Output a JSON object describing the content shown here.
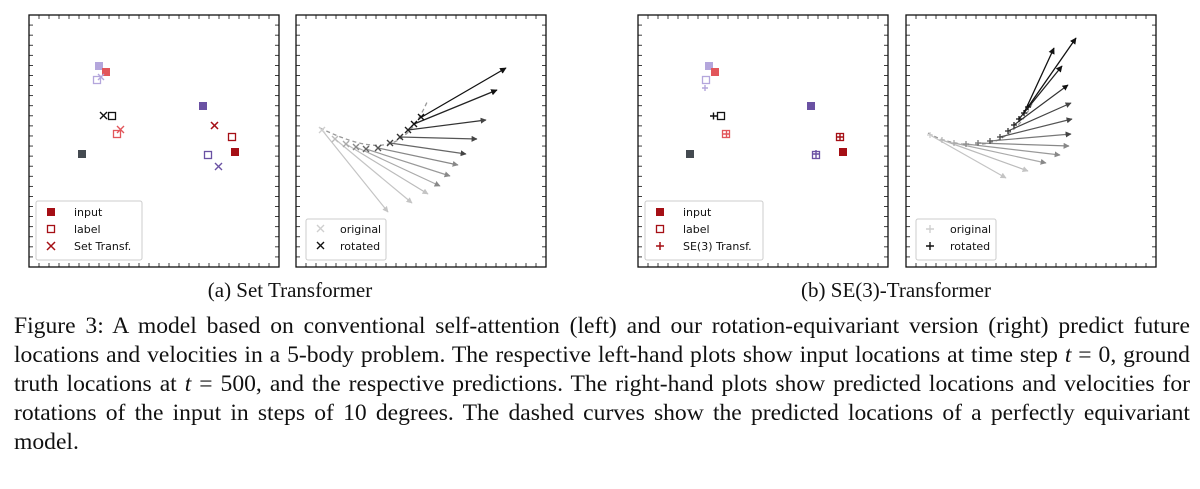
{
  "figure": {
    "panels": [
      {
        "subcaption": "(a) Set Transformer",
        "left_legend": [
          "input",
          "label",
          "Set Transf."
        ],
        "right_legend": [
          "original",
          "rotated"
        ]
      },
      {
        "subcaption": "(b) SE(3)-Transformer",
        "left_legend": [
          "input",
          "label",
          "SE(3) Transf."
        ],
        "right_legend": [
          "original",
          "rotated"
        ]
      }
    ],
    "colors": {
      "dark_red": "#a50f15",
      "red": "#e2565b",
      "light_purple": "#b4a6dc",
      "purple": "#6a51a3",
      "dark_gray": "#444a50",
      "light_gray": "#d0d0d0",
      "black": "#111111"
    }
  },
  "caption": {
    "label": "Figure 3:",
    "part1": " A model based on conventional self-attention (left) and our rotation-equivariant version (right) predict future locations and velocities in a 5-body problem. The respective left-hand plots show input locations at time step ",
    "var1": "t",
    "part2": " = 0, ground truth locations at ",
    "var2": "t",
    "part3": " = 500, and the respective predictions. The right-hand plots show predicted locations and velocities for rotations of the input in steps of 10 degrees. The dashed curves show the predicted locations of a perfectly equivariant model."
  }
}
